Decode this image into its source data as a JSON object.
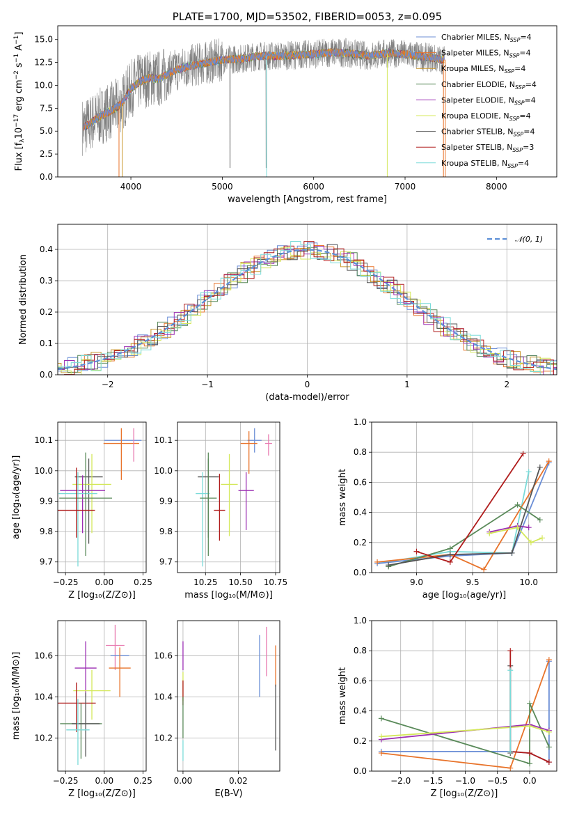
{
  "colors": {
    "Chabrier MILES": "#6b8ed6",
    "Salpeter MILES": "#e8732a",
    "Kroupa MILES": "#c9962b",
    "Chabrier ELODIE": "#5a8a5a",
    "Salpeter ELODIE": "#9c2fb3",
    "Kroupa ELODIE": "#d4e85a",
    "Chabrier STELIB": "#555555",
    "Salpeter STELIB": "#b01c1c",
    "Kroupa STELIB": "#7adbd9",
    "data": "#808080",
    "normal": "#5b8fd6",
    "pink": "#e87ab0"
  },
  "chart_data": [
    {
      "id": "spectrum",
      "type": "line",
      "title": "PLATE=1700, MJD=53502, FIBERID=0053, z=0.095",
      "xlabel": "wavelength [Angstrom, rest frame]",
      "ylabel": "Flux [f_λ 10^-17 erg cm^-2 s^-1 A^-1]",
      "xlim": [
        3200,
        8660
      ],
      "ylim": [
        0,
        16.5
      ],
      "xticks": [
        "4000",
        "5000",
        "6000",
        "7000",
        "8000"
      ],
      "yticks": [
        "0.0",
        "2.5",
        "5.0",
        "7.5",
        "10.0",
        "12.5",
        "15.0"
      ],
      "grid": false,
      "legend_position": "top-right",
      "legend": [
        {
          "name": "Chabrier MILES",
          "nssp": "=4"
        },
        {
          "name": "Salpeter MILES",
          "nssp": "=4"
        },
        {
          "name": "Kroupa MILES",
          "nssp": "=4"
        },
        {
          "name": "Chabrier ELODIE",
          "nssp": "=4"
        },
        {
          "name": "Salpeter ELODIE",
          "nssp": "=4"
        },
        {
          "name": "Kroupa ELODIE",
          "nssp": "=4"
        },
        {
          "name": "Chabrier STELIB",
          "nssp": "=4"
        },
        {
          "name": "Salpeter STELIB",
          "nssp": "=3"
        },
        {
          "name": "Kroupa STELIB",
          "nssp": "=4"
        }
      ],
      "continuum_x": [
        3500,
        3600,
        3700,
        3800,
        3900,
        4000,
        4100,
        4200,
        4300,
        4400,
        4500,
        4600,
        4800,
        5000,
        5200,
        5400,
        5600,
        5800,
        6000,
        6200,
        6400,
        6600,
        6800,
        7000,
        7200,
        7400
      ],
      "continuum_y": [
        5.5,
        6.2,
        6.8,
        7.3,
        8.0,
        9.6,
        10.4,
        10.8,
        10.7,
        11.2,
        11.7,
        12.0,
        12.4,
        12.8,
        12.9,
        13.2,
        13.2,
        13.3,
        13.4,
        13.6,
        13.5,
        13.2,
        13.5,
        13.4,
        13.1,
        12.8
      ],
      "data_range": [
        3470,
        7430
      ]
    },
    {
      "id": "residuals",
      "type": "line",
      "xlabel": "(data-model)/error",
      "ylabel": "Normed distribution",
      "xlim": [
        -2.5,
        2.5
      ],
      "ylim": [
        0,
        0.48
      ],
      "xticks": [
        "−2",
        "−1",
        "0",
        "1",
        "2"
      ],
      "yticks": [
        "0.0",
        "0.1",
        "0.2",
        "0.3",
        "0.4"
      ],
      "grid": true,
      "legend": [
        {
          "name": "𝒩(0, 1)"
        }
      ],
      "legend_position": "top-right",
      "normal_mean": 0,
      "normal_sigma": 1
    },
    {
      "id": "age_vs_Z",
      "type": "scatter",
      "xlabel": "Z [log₁₀(Z/Z⊙)]",
      "ylabel": "age  [log₁₀(age/yr)]",
      "xlim": [
        -0.3,
        0.27
      ],
      "ylim": [
        9.665,
        10.16
      ],
      "xticks": [
        "−0.25",
        "0.00",
        "0.25"
      ],
      "yticks": [
        "9.7",
        "9.8",
        "9.9",
        "10.0",
        "10.1"
      ],
      "grid": true,
      "points": [
        {
          "series": "Chabrier MILES",
          "x": 0.12,
          "xerr": 0.24,
          "y": 10.1,
          "yerr": [
            0,
            0
          ]
        },
        {
          "series": "Salpeter MILES",
          "x": 0.11,
          "xerr": 0.23,
          "y": 10.09,
          "yerr": [
            0.12,
            0.05
          ]
        },
        {
          "series": "pink",
          "x": 0.19,
          "xerr": 0.0,
          "y": 10.1,
          "yerr": [
            0.07,
            0.04
          ]
        },
        {
          "series": "Chabrier STELIB",
          "x": -0.1,
          "xerr": 0.18,
          "y": 9.98,
          "yerr": [
            0.22,
            0.06
          ]
        },
        {
          "series": "Kroupa ELODIE",
          "x": -0.08,
          "xerr": 0.25,
          "y": 9.955,
          "yerr": [
            0.16,
            0.1
          ]
        },
        {
          "series": "Salpeter ELODIE",
          "x": -0.14,
          "xerr": 0.29,
          "y": 9.935,
          "yerr": [
            0.14,
            0.05
          ]
        },
        {
          "series": "Kroupa STELIB",
          "x": -0.17,
          "xerr": 0.25,
          "y": 9.925,
          "yerr": [
            0.24,
            0.07
          ]
        },
        {
          "series": "Chabrier ELODIE",
          "x": -0.12,
          "xerr": 0.34,
          "y": 9.91,
          "yerr": [
            0.19,
            0.15
          ]
        },
        {
          "series": "Salpeter STELIB",
          "x": -0.18,
          "xerr": 0.24,
          "y": 9.87,
          "yerr": [
            0.09,
            0.14
          ]
        }
      ]
    },
    {
      "id": "age_vs_mass",
      "type": "scatter",
      "xlabel": "mass [log₁₀(M/M⊙)]",
      "ylabel": "",
      "xlim": [
        10.05,
        10.78
      ],
      "ylim": [
        9.665,
        10.16
      ],
      "xticks": [
        "10.25",
        "10.50",
        "10.75"
      ],
      "yticks": [
        "9.7",
        "9.8",
        "9.9",
        "10.0",
        "10.1"
      ],
      "grid": true,
      "points": [
        {
          "series": "Chabrier MILES",
          "x": 10.6,
          "xerr": 0.1,
          "y": 10.1,
          "yerr": [
            0.04,
            0.04
          ]
        },
        {
          "series": "Salpeter MILES",
          "x": 10.56,
          "xerr": 0.12,
          "y": 10.09,
          "yerr": [
            0.1,
            0.04
          ]
        },
        {
          "series": "pink",
          "x": 10.7,
          "xerr": 0.05,
          "y": 10.09,
          "yerr": [
            0.04,
            0.03
          ]
        },
        {
          "series": "Chabrier STELIB",
          "x": 10.27,
          "xerr": 0.15,
          "y": 9.98,
          "yerr": [
            0.2,
            0.06
          ]
        },
        {
          "series": "Kroupa ELODIE",
          "x": 10.42,
          "xerr": 0.12,
          "y": 9.955,
          "yerr": [
            0.17,
            0.1
          ]
        },
        {
          "series": "Salpeter ELODIE",
          "x": 10.54,
          "xerr": 0.11,
          "y": 9.935,
          "yerr": [
            0.13,
            0.06
          ]
        },
        {
          "series": "Kroupa STELIB",
          "x": 10.23,
          "xerr": 0.1,
          "y": 9.925,
          "yerr": [
            0.24,
            0.07
          ]
        },
        {
          "series": "Chabrier ELODIE",
          "x": 10.27,
          "xerr": 0.12,
          "y": 9.91,
          "yerr": [
            0.19,
            0.15
          ]
        },
        {
          "series": "Salpeter STELIB",
          "x": 10.35,
          "xerr": 0.08,
          "y": 9.87,
          "yerr": [
            0.1,
            0.12
          ]
        }
      ]
    },
    {
      "id": "weight_vs_age",
      "type": "line",
      "xlabel": "age  [log₁₀(age/yr)]",
      "ylabel": "mass weight",
      "xlim": [
        8.6,
        10.25
      ],
      "ylim": [
        0,
        1.0
      ],
      "xticks": [
        "9.0",
        "9.5",
        "10.0"
      ],
      "yticks": [
        "0.0",
        "0.2",
        "0.4",
        "0.6",
        "0.8",
        "1.0"
      ],
      "grid": true,
      "series": [
        {
          "name": "Kroupa STELIB",
          "x": [
            8.65,
            9.3,
            9.85,
            10.0
          ],
          "y": [
            0.06,
            0.14,
            0.13,
            0.67
          ]
        },
        {
          "name": "Chabrier MILES",
          "x": [
            8.65,
            9.3,
            9.85,
            10.18
          ],
          "y": [
            0.06,
            0.11,
            0.13,
            0.73
          ]
        },
        {
          "name": "Salpeter MILES",
          "x": [
            8.65,
            9.3,
            9.6,
            10.18
          ],
          "y": [
            0.07,
            0.12,
            0.02,
            0.74
          ]
        },
        {
          "name": "Chabrier ELODIE",
          "x": [
            8.75,
            9.3,
            9.9,
            10.1
          ],
          "y": [
            0.04,
            0.16,
            0.45,
            0.35
          ]
        },
        {
          "name": "Salpeter ELODIE",
          "x": [
            9.65,
            9.9,
            10.0
          ],
          "y": [
            0.27,
            0.31,
            0.3
          ]
        },
        {
          "name": "Kroupa ELODIE",
          "x": [
            9.65,
            9.9,
            10.02,
            10.12
          ],
          "y": [
            0.26,
            0.3,
            0.2,
            0.23
          ]
        },
        {
          "name": "Chabrier STELIB",
          "x": [
            8.75,
            9.3,
            9.85,
            10.1
          ],
          "y": [
            0.05,
            0.12,
            0.13,
            0.7
          ]
        },
        {
          "name": "Salpeter STELIB",
          "x": [
            9.0,
            9.3,
            9.95
          ],
          "y": [
            0.14,
            0.07,
            0.79
          ]
        }
      ]
    },
    {
      "id": "mass_vs_Z",
      "type": "scatter",
      "xlabel": "Z [log₁₀(Z/Z⊙)]",
      "ylabel": "mass [log₁₀(M/M⊙)]",
      "xlim": [
        -0.3,
        0.27
      ],
      "ylim": [
        10.04,
        10.77
      ],
      "xticks": [
        "−0.25",
        "0.00",
        "0.25"
      ],
      "yticks": [
        "10.2",
        "10.4",
        "10.6"
      ],
      "grid": true,
      "points": [
        {
          "series": "pink",
          "x": 0.07,
          "xerr": 0.12,
          "y": 10.65,
          "yerr": [
            0.12,
            0.1
          ]
        },
        {
          "series": "Chabrier MILES",
          "x": 0.1,
          "xerr": 0.12,
          "y": 10.6,
          "yerr": [
            0,
            0
          ]
        },
        {
          "series": "Salpeter MILES",
          "x": 0.1,
          "xerr": 0.14,
          "y": 10.54,
          "yerr": [
            0.14,
            0.1
          ]
        },
        {
          "series": "Salpeter ELODIE",
          "x": -0.12,
          "xerr": 0.14,
          "y": 10.54,
          "yerr": [
            0.14,
            0.13
          ]
        },
        {
          "series": "Kroupa ELODIE",
          "x": -0.08,
          "xerr": 0.24,
          "y": 10.43,
          "yerr": [
            0.14,
            0.1
          ]
        },
        {
          "series": "Salpeter STELIB",
          "x": -0.18,
          "xerr": 0.25,
          "y": 10.37,
          "yerr": [
            0.14,
            0.1
          ]
        },
        {
          "series": "Chabrier ELODIE",
          "x": -0.15,
          "xerr": 0.27,
          "y": 10.27,
          "yerr": [
            0.17,
            0.1
          ]
        },
        {
          "series": "Chabrier STELIB",
          "x": -0.12,
          "xerr": 0.18,
          "y": 10.27,
          "yerr": [
            0.16,
            0.15
          ]
        },
        {
          "series": "Kroupa STELIB",
          "x": -0.17,
          "xerr": 0.15,
          "y": 10.24,
          "yerr": [
            0.17,
            0.15
          ]
        }
      ]
    },
    {
      "id": "mass_vs_EBV",
      "type": "scatter",
      "xlabel": "E(B-V)",
      "ylabel": "",
      "xlim": [
        -0.002,
        0.035
      ],
      "ylim": [
        10.04,
        10.77
      ],
      "xticks": [
        "0.00",
        "0.02"
      ],
      "yticks": [
        "10.2",
        "10.4",
        "10.6"
      ],
      "grid": true,
      "points": [
        {
          "series": "Salpeter ELODIE",
          "x": 0.0,
          "xerr": 0,
          "y": 10.6,
          "yerr": [
            0.07,
            0.07
          ]
        },
        {
          "series": "Kroupa ELODIE",
          "x": 0.0,
          "xerr": 0,
          "y": 10.45,
          "yerr": [
            0.07,
            0.07
          ]
        },
        {
          "series": "Salpeter STELIB",
          "x": 0.0,
          "xerr": 0,
          "y": 10.42,
          "yerr": [
            0.06,
            0.06
          ]
        },
        {
          "series": "Chabrier ELODIE",
          "x": 0.0,
          "xerr": 0,
          "y": 10.3,
          "yerr": [
            0.1,
            0.1
          ]
        },
        {
          "series": "Kroupa STELIB",
          "x": 0.0,
          "xerr": 0,
          "y": 10.14,
          "yerr": [
            0.05,
            0.05
          ]
        },
        {
          "series": "Chabrier MILES",
          "x": 0.0277,
          "xerr": 0,
          "y": 10.55,
          "yerr": [
            0.15,
            0.15
          ]
        },
        {
          "series": "pink",
          "x": 0.0302,
          "xerr": 0,
          "y": 10.62,
          "yerr": [
            0.12,
            0.12
          ]
        },
        {
          "series": "Salpeter MILES",
          "x": 0.0335,
          "xerr": 0,
          "y": 10.55,
          "yerr": [
            0.1,
            0.1
          ]
        },
        {
          "series": "Chabrier STELIB",
          "x": 0.0335,
          "xerr": 0,
          "y": 10.3,
          "yerr": [
            0.16,
            0.16
          ]
        }
      ]
    },
    {
      "id": "weight_vs_Z",
      "type": "line",
      "xlabel": "Z [log₁₀(Z/Z⊙)]",
      "ylabel": "mass weight",
      "xlim": [
        -2.45,
        0.42
      ],
      "ylim": [
        0,
        1.0
      ],
      "xticks": [
        "−2.0",
        "−1.5",
        "−1.0",
        "−0.5",
        "0.0"
      ],
      "yticks": [
        "0.0",
        "0.2",
        "0.4",
        "0.6",
        "0.8",
        "1.0"
      ],
      "grid": true,
      "series": [
        {
          "name": "Chabrier MILES",
          "x": [
            -2.3,
            -0.3,
            0.0,
            0.3,
            0.3
          ],
          "y": [
            0.13,
            0.13,
            0.12,
            0.06,
            0.73
          ]
        },
        {
          "name": "Salpeter MILES",
          "x": [
            -2.3,
            -0.3,
            0.3
          ],
          "y": [
            0.12,
            0.02,
            0.74
          ]
        },
        {
          "name": "Chabrier ELODIE",
          "x": [
            -2.3,
            0.0,
            0.0,
            0.3
          ],
          "y": [
            0.35,
            0.05,
            0.45,
            0.16
          ]
        },
        {
          "name": "Salpeter ELODIE",
          "x": [
            -2.3,
            0.0,
            0.3
          ],
          "y": [
            0.21,
            0.31,
            0.27
          ]
        },
        {
          "name": "Kroupa ELODIE",
          "x": [
            -2.3,
            0.0,
            0.3
          ],
          "y": [
            0.23,
            0.3,
            0.26
          ]
        },
        {
          "name": "Chabrier STELIB",
          "x": [
            -0.3,
            -0.3
          ],
          "y": [
            0.12,
            0.7
          ]
        },
        {
          "name": "Salpeter STELIB",
          "x": [
            -0.3,
            -0.3,
            0.0,
            0.3
          ],
          "y": [
            0.8,
            0.13,
            0.12,
            0.06
          ]
        },
        {
          "name": "Kroupa STELIB",
          "x": [
            -0.3,
            -0.3
          ],
          "y": [
            0.13,
            0.67
          ]
        }
      ]
    }
  ]
}
